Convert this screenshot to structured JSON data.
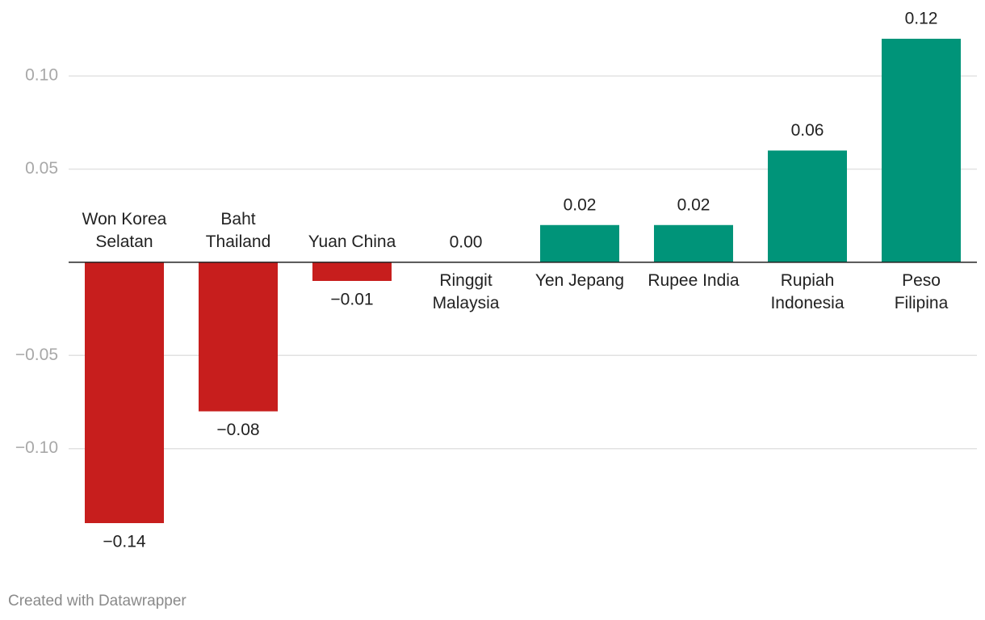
{
  "chart_data": {
    "type": "bar",
    "categories": [
      [
        "Won Korea",
        "Selatan"
      ],
      [
        "Baht",
        "Thailand"
      ],
      [
        "Yuan China"
      ],
      [
        "Ringgit",
        "Malaysia"
      ],
      [
        "Yen Jepang"
      ],
      [
        "Rupee India"
      ],
      [
        "Rupiah",
        "Indonesia"
      ],
      [
        "Peso",
        "Filipina"
      ]
    ],
    "values": [
      -0.14,
      -0.08,
      -0.01,
      0,
      0.02,
      0.02,
      0.06,
      0.12
    ],
    "value_labels": [
      "−0.14",
      "−0.08",
      "−0.01",
      "0.00",
      "0.02",
      "0.02",
      "0.06",
      "0.12"
    ],
    "colors": [
      "#c71e1d",
      "#c71e1d",
      "#c71e1d",
      "#009479",
      "#009479",
      "#009479",
      "#009479",
      "#009479"
    ],
    "ylim": [
      -0.14,
      0.12
    ],
    "yticks": [
      {
        "value": -0.1,
        "label": "−0.10"
      },
      {
        "value": -0.05,
        "label": "−0.05"
      },
      {
        "value": 0.05,
        "label": "0.05"
      },
      {
        "value": 0.1,
        "label": "0.10"
      }
    ],
    "grid": true,
    "footer": "Created with Datawrapper"
  }
}
